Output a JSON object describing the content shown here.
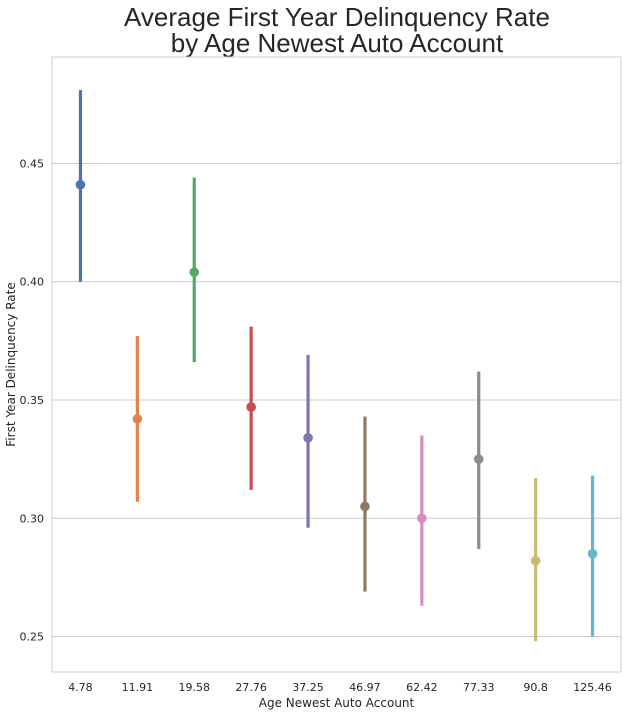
{
  "chart_data": {
    "type": "point",
    "title_lines": [
      "Average First Year Delinquency Rate",
      "by Age Newest Auto Account"
    ],
    "xlabel": "Age Newest Auto Account",
    "ylabel": "First Year Delinquency Rate",
    "ylim": [
      0.235,
      0.495
    ],
    "yticks": [
      0.25,
      0.3,
      0.35,
      0.4,
      0.45
    ],
    "ytick_labels": [
      "0.25",
      "0.30",
      "0.35",
      "0.40",
      "0.45"
    ],
    "grid": "horizontal",
    "categories": [
      "4.78",
      "11.91",
      "19.58",
      "27.76",
      "37.25",
      "46.97",
      "62.42",
      "77.33",
      "90.8",
      "125.46"
    ],
    "values": [
      0.441,
      0.342,
      0.404,
      0.347,
      0.334,
      0.305,
      0.3,
      0.325,
      0.282,
      0.285
    ],
    "ci_low": [
      0.4,
      0.307,
      0.366,
      0.312,
      0.296,
      0.269,
      0.263,
      0.287,
      0.248,
      0.25
    ],
    "ci_high": [
      0.481,
      0.377,
      0.444,
      0.381,
      0.369,
      0.343,
      0.335,
      0.362,
      0.317,
      0.318
    ],
    "colors": [
      "#4c72b0",
      "#dd8452",
      "#55a868",
      "#c44e52",
      "#8172b3",
      "#937860",
      "#da8bc3",
      "#8c8c8c",
      "#ccb974",
      "#64b5cd"
    ]
  }
}
